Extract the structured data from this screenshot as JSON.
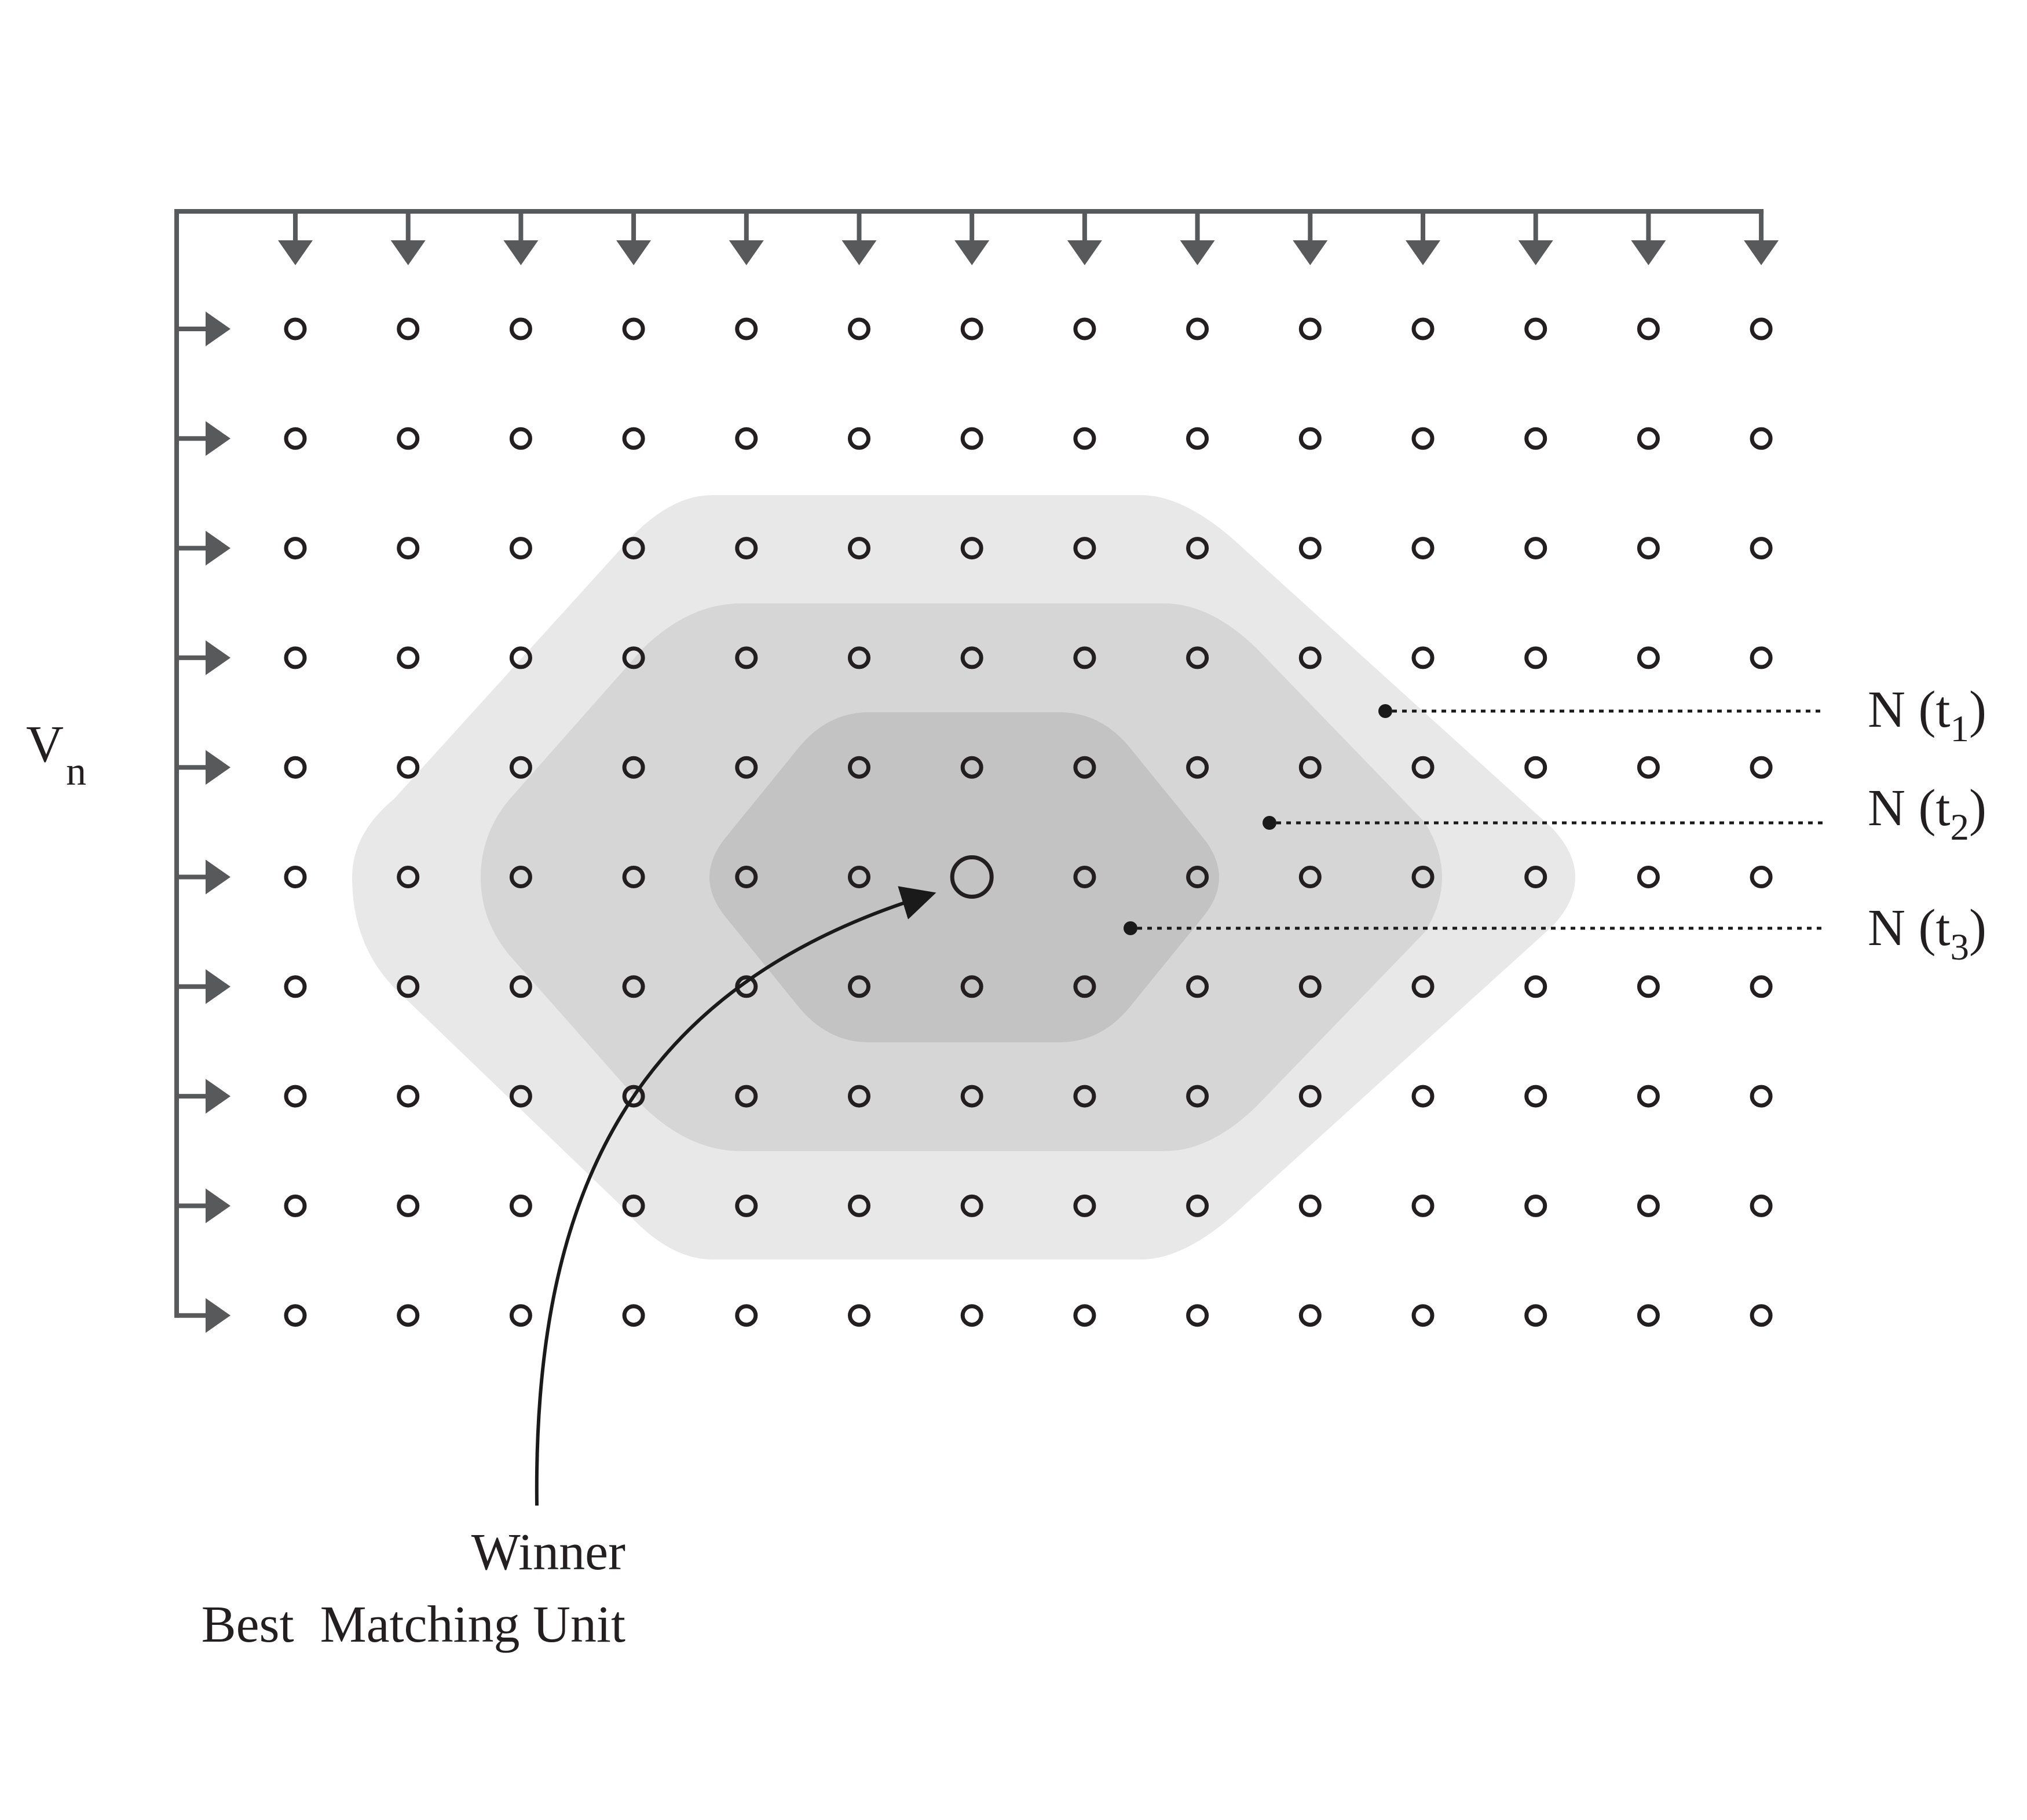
{
  "grid": {
    "rows": 10,
    "cols": 14
  },
  "winner": {
    "row": 5,
    "col": 6
  },
  "input_label": {
    "main": "V",
    "sub": "n"
  },
  "neighborhoods": [
    {
      "prefix": "N (t",
      "sub": "1",
      "suffix": ")",
      "fill": "#e8e8e8"
    },
    {
      "prefix": "N (t",
      "sub": "2",
      "suffix": ")",
      "fill": "#d6d6d6"
    },
    {
      "prefix": "N (t",
      "sub": "3",
      "suffix": ")",
      "fill": "#c3c3c3"
    }
  ],
  "winner_label": {
    "line1": "Winner",
    "line2": "Best  Matching Unit"
  },
  "colors": {
    "line": "#58595b",
    "node": "#231f20",
    "text": "#231f20"
  }
}
